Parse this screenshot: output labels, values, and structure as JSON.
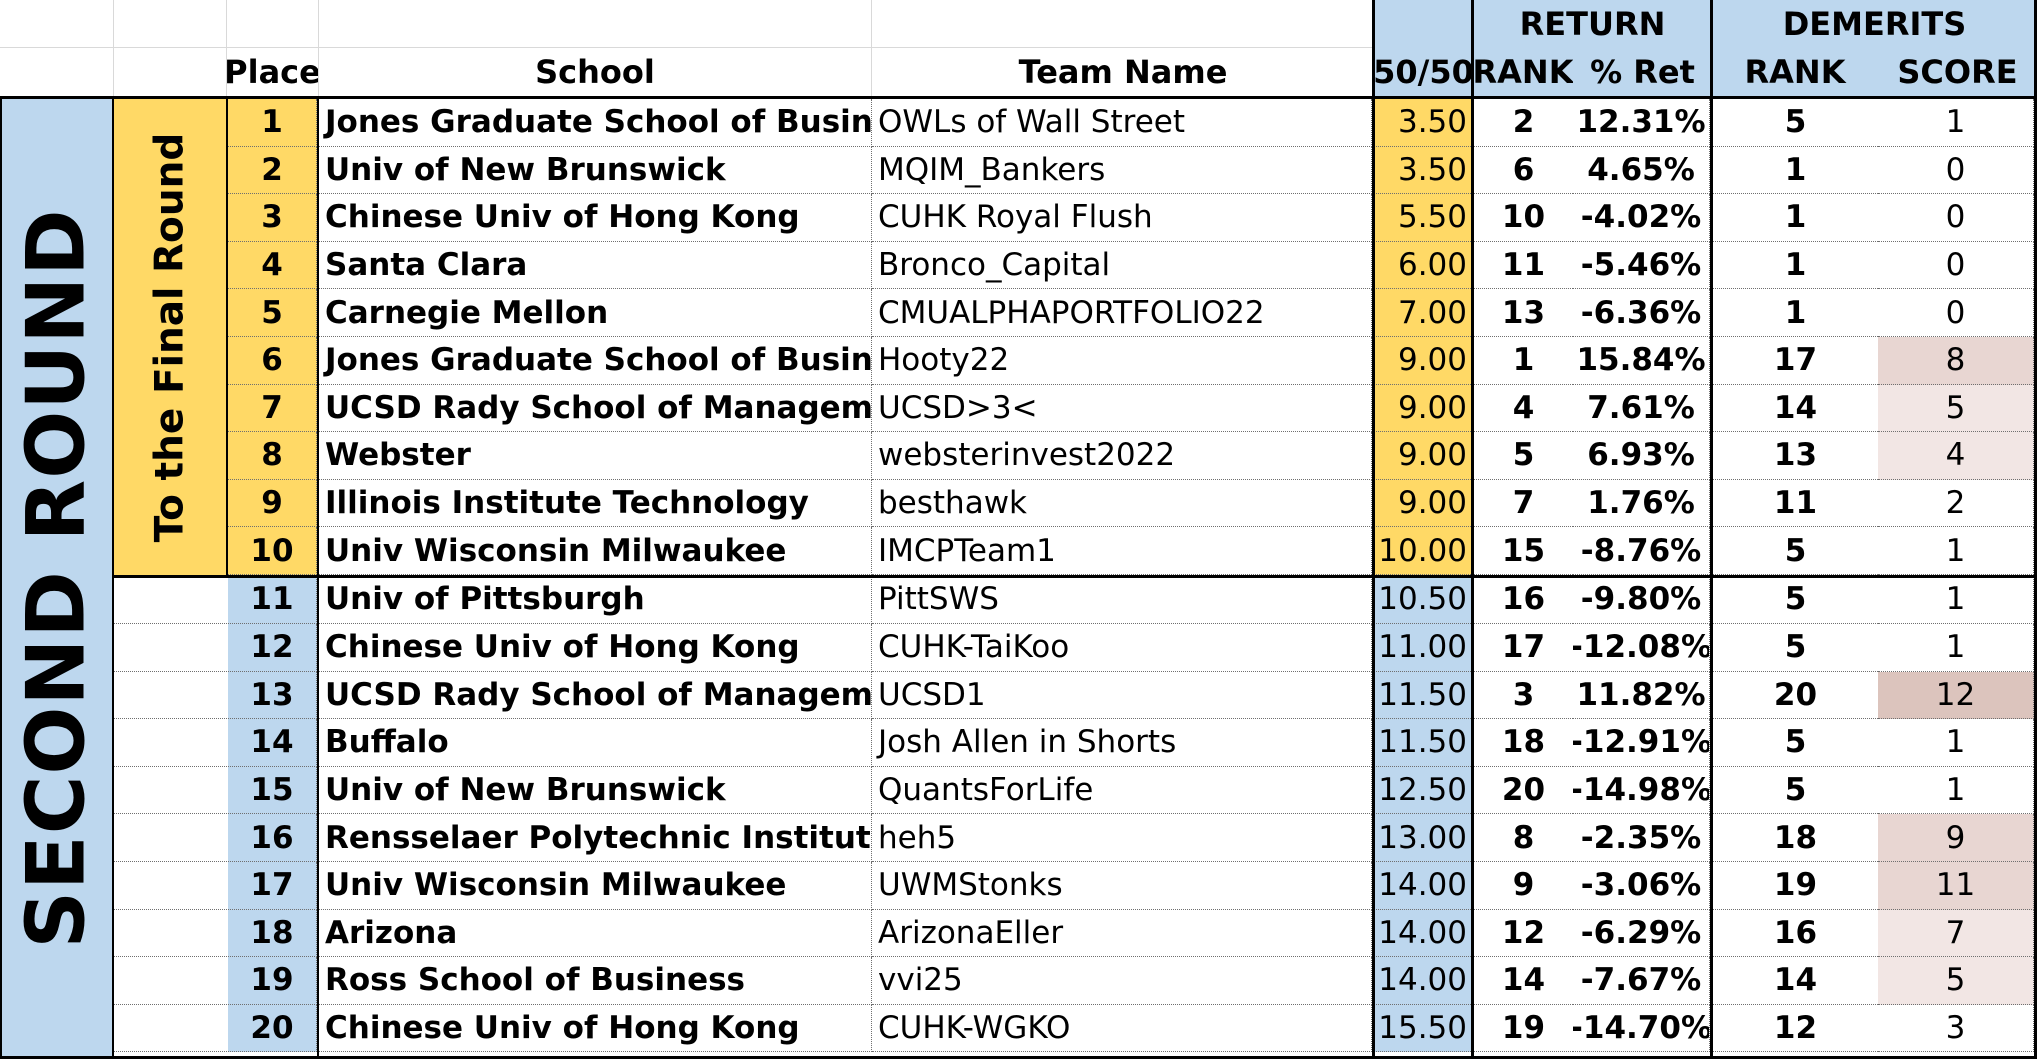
{
  "header": {
    "return_group": "RETURN",
    "demerits_group": "DEMERITS",
    "place": "Place",
    "school": "School",
    "team": "Team Name",
    "fifty": "50/50",
    "ret_rank": "RANK",
    "ret_pct": "% Ret",
    "dem_rank": "RANK",
    "dem_score": "SCORE"
  },
  "labels": {
    "round": "SECOND ROUND",
    "final": "To the Final Round"
  },
  "colors": {
    "blue": "#bdd7ee",
    "gold": "#ffd966",
    "pink_light": "#f2e6e4",
    "pink_mid": "#e8d6d2",
    "pink_dark": "#dcc4bd"
  },
  "rows": [
    {
      "place": "1",
      "school": "Jones Graduate School of Business",
      "team": "OWLs of Wall Street",
      "fifty": "3.50",
      "ret_rank": "2",
      "ret_pct": "12.31%",
      "dem_rank": "5",
      "dem_score": "1"
    },
    {
      "place": "2",
      "school": "Univ of New Brunswick",
      "team": "MQIM_Bankers",
      "fifty": "3.50",
      "ret_rank": "6",
      "ret_pct": "4.65%",
      "dem_rank": "1",
      "dem_score": "0"
    },
    {
      "place": "3",
      "school": "Chinese Univ of Hong Kong",
      "team": "CUHK Royal Flush",
      "fifty": "5.50",
      "ret_rank": "10",
      "ret_pct": "-4.02%",
      "dem_rank": "1",
      "dem_score": "0"
    },
    {
      "place": "4",
      "school": "Santa Clara",
      "team": "Bronco_Capital",
      "fifty": "6.00",
      "ret_rank": "11",
      "ret_pct": "-5.46%",
      "dem_rank": "1",
      "dem_score": "0"
    },
    {
      "place": "5",
      "school": "Carnegie Mellon",
      "team": "CMUALPHAPORTFOLIO22",
      "fifty": "7.00",
      "ret_rank": "13",
      "ret_pct": "-6.36%",
      "dem_rank": "1",
      "dem_score": "0"
    },
    {
      "place": "6",
      "school": "Jones Graduate School of Business",
      "team": "Hooty22",
      "fifty": "9.00",
      "ret_rank": "1",
      "ret_pct": "15.84%",
      "dem_rank": "17",
      "dem_score": "8"
    },
    {
      "place": "7",
      "school": "UCSD Rady School of Management",
      "team": "UCSD>3<",
      "fifty": "9.00",
      "ret_rank": "4",
      "ret_pct": "7.61%",
      "dem_rank": "14",
      "dem_score": "5"
    },
    {
      "place": "8",
      "school": "Webster",
      "team": "websterinvest2022",
      "fifty": "9.00",
      "ret_rank": "5",
      "ret_pct": "6.93%",
      "dem_rank": "13",
      "dem_score": "4"
    },
    {
      "place": "9",
      "school": "Illinois Institute Technology",
      "team": "besthawk",
      "fifty": "9.00",
      "ret_rank": "7",
      "ret_pct": "1.76%",
      "dem_rank": "11",
      "dem_score": "2"
    },
    {
      "place": "10",
      "school": "Univ Wisconsin Milwaukee",
      "team": "IMCPTeam1",
      "fifty": "10.00",
      "ret_rank": "15",
      "ret_pct": "-8.76%",
      "dem_rank": "5",
      "dem_score": "1"
    },
    {
      "place": "11",
      "school": "Univ of Pittsburgh",
      "team": "PittSWS",
      "fifty": "10.50",
      "ret_rank": "16",
      "ret_pct": "-9.80%",
      "dem_rank": "5",
      "dem_score": "1"
    },
    {
      "place": "12",
      "school": "Chinese Univ of Hong Kong",
      "team": "CUHK-TaiKoo",
      "fifty": "11.00",
      "ret_rank": "17",
      "ret_pct": "-12.08%",
      "dem_rank": "5",
      "dem_score": "1"
    },
    {
      "place": "13",
      "school": "UCSD Rady School of Management",
      "team": "UCSD1",
      "fifty": "11.50",
      "ret_rank": "3",
      "ret_pct": "11.82%",
      "dem_rank": "20",
      "dem_score": "12"
    },
    {
      "place": "14",
      "school": "Buffalo",
      "team": "Josh Allen in Shorts",
      "fifty": "11.50",
      "ret_rank": "18",
      "ret_pct": "-12.91%",
      "dem_rank": "5",
      "dem_score": "1"
    },
    {
      "place": "15",
      "school": "Univ of New Brunswick",
      "team": "QuantsForLife",
      "fifty": "12.50",
      "ret_rank": "20",
      "ret_pct": "-14.98%",
      "dem_rank": "5",
      "dem_score": "1"
    },
    {
      "place": "16",
      "school": "Rensselaer Polytechnic Institute",
      "team": "heh5",
      "fifty": "13.00",
      "ret_rank": "8",
      "ret_pct": "-2.35%",
      "dem_rank": "18",
      "dem_score": "9"
    },
    {
      "place": "17",
      "school": "Univ Wisconsin Milwaukee",
      "team": "UWMStonks",
      "fifty": "14.00",
      "ret_rank": "9",
      "ret_pct": "-3.06%",
      "dem_rank": "19",
      "dem_score": "11"
    },
    {
      "place": "18",
      "school": "Arizona",
      "team": "ArizonaEller",
      "fifty": "14.00",
      "ret_rank": "12",
      "ret_pct": "-6.29%",
      "dem_rank": "16",
      "dem_score": "7"
    },
    {
      "place": "19",
      "school": "Ross School of Business",
      "team": "vvi25",
      "fifty": "14.00",
      "ret_rank": "14",
      "ret_pct": "-7.67%",
      "dem_rank": "14",
      "dem_score": "5"
    },
    {
      "place": "20",
      "school": "Chinese Univ of Hong Kong",
      "team": "CUHK-WGKO",
      "fifty": "15.50",
      "ret_rank": "19",
      "ret_pct": "-14.70%",
      "dem_rank": "12",
      "dem_score": "3"
    }
  ]
}
